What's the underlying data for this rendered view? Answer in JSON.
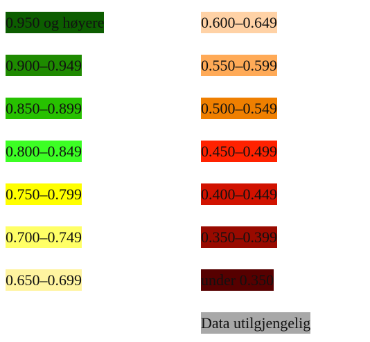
{
  "legend": {
    "left": [
      {
        "label": "0.950 og høyere",
        "color": "#0c5d00",
        "text_color": "#111111"
      },
      {
        "label": "0.900–0.949",
        "color": "#1e8a00",
        "text_color": "#111111"
      },
      {
        "label": "0.850–0.899",
        "color": "#27c100",
        "text_color": "#111111"
      },
      {
        "label": "0.800–0.849",
        "color": "#3cff24",
        "text_color": "#111111"
      },
      {
        "label": "0.750–0.799",
        "color": "#ffff00",
        "text_color": "#111111"
      },
      {
        "label": "0.700–0.749",
        "color": "#ffff66",
        "text_color": "#111111"
      },
      {
        "label": "0.650–0.699",
        "color": "#fff4a0",
        "text_color": "#111111"
      }
    ],
    "right": [
      {
        "label": "0.600–0.649",
        "color": "#ffd2a6",
        "text_color": "#111111"
      },
      {
        "label": "0.550–0.599",
        "color": "#ffaa57",
        "text_color": "#111111"
      },
      {
        "label": "0.500–0.549",
        "color": "#ef7f00",
        "text_color": "#111111"
      },
      {
        "label": "0.450–0.499",
        "color": "#ff2200",
        "text_color": "#111111"
      },
      {
        "label": "0.400–0.449",
        "color": "#d11200",
        "text_color": "#111111"
      },
      {
        "label": "0.350–0.399",
        "color": "#990a00",
        "text_color": "#111111"
      },
      {
        "label": "under 0.350",
        "color": "#560000",
        "text_color": "#111111"
      },
      {
        "label": "Data utilgjengelig",
        "color": "#a8a8a8",
        "text_color": "#111111"
      }
    ]
  }
}
